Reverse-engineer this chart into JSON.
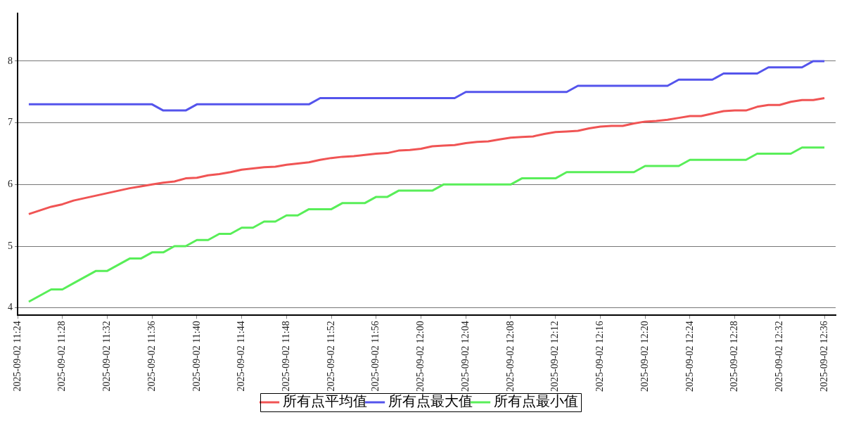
{
  "chart_data": {
    "type": "line",
    "x": [
      "2025-09-02T11:25",
      "2025-09-02T11:26",
      "2025-09-02T11:27",
      "2025-09-02T11:28",
      "2025-09-02T11:29",
      "2025-09-02T11:30",
      "2025-09-02T11:31",
      "2025-09-02T11:32",
      "2025-09-02T11:33",
      "2025-09-02T11:34",
      "2025-09-02T11:35",
      "2025-09-02T11:36",
      "2025-09-02T11:37",
      "2025-09-02T11:38",
      "2025-09-02T11:39",
      "2025-09-02T11:40",
      "2025-09-02T11:41",
      "2025-09-02T11:42",
      "2025-09-02T11:43",
      "2025-09-02T11:44",
      "2025-09-02T11:45",
      "2025-09-02T11:46",
      "2025-09-02T11:47",
      "2025-09-02T11:48",
      "2025-09-02T11:49",
      "2025-09-02T11:50",
      "2025-09-02T11:51",
      "2025-09-02T11:52",
      "2025-09-02T11:53",
      "2025-09-02T11:54",
      "2025-09-02T11:55",
      "2025-09-02T11:56",
      "2025-09-02T11:57",
      "2025-09-02T11:58",
      "2025-09-02T11:59",
      "2025-09-02T12:00",
      "2025-09-02T12:01",
      "2025-09-02T12:02",
      "2025-09-02T12:03",
      "2025-09-02T12:04",
      "2025-09-02T12:05",
      "2025-09-02T12:06",
      "2025-09-02T12:07",
      "2025-09-02T12:08",
      "2025-09-02T12:09",
      "2025-09-02T12:10",
      "2025-09-02T12:11",
      "2025-09-02T12:12",
      "2025-09-02T12:13",
      "2025-09-02T12:14",
      "2025-09-02T12:15",
      "2025-09-02T12:16",
      "2025-09-02T12:17",
      "2025-09-02T12:18",
      "2025-09-02T12:19",
      "2025-09-02T12:20",
      "2025-09-02T12:21",
      "2025-09-02T12:22",
      "2025-09-02T12:23",
      "2025-09-02T12:24",
      "2025-09-02T12:25",
      "2025-09-02T12:26",
      "2025-09-02T12:27",
      "2025-09-02T12:28",
      "2025-09-02T12:29",
      "2025-09-02T12:30",
      "2025-09-02T12:31",
      "2025-09-02T12:32",
      "2025-09-02T12:33",
      "2025-09-02T12:34",
      "2025-09-02T12:35",
      "2025-09-02T12:36"
    ],
    "series": [
      {
        "name": "所有点平均值",
        "color": "#f05454",
        "values": [
          5.52,
          5.58,
          5.64,
          5.68,
          5.74,
          5.78,
          5.82,
          5.86,
          5.9,
          5.94,
          5.97,
          6.0,
          6.03,
          6.05,
          6.1,
          6.11,
          6.15,
          6.17,
          6.2,
          6.24,
          6.26,
          6.28,
          6.29,
          6.32,
          6.34,
          6.36,
          6.4,
          6.43,
          6.45,
          6.46,
          6.48,
          6.5,
          6.51,
          6.55,
          6.56,
          6.58,
          6.62,
          6.63,
          6.64,
          6.67,
          6.69,
          6.7,
          6.73,
          6.76,
          6.77,
          6.78,
          6.82,
          6.85,
          6.86,
          6.87,
          6.91,
          6.94,
          6.95,
          6.95,
          6.99,
          7.02,
          7.03,
          7.05,
          7.08,
          7.11,
          7.11,
          7.15,
          7.19,
          7.2,
          7.2,
          7.26,
          7.29,
          7.29,
          7.34,
          7.37,
          7.37,
          7.4
        ]
      },
      {
        "name": "所有点最大值",
        "color": "#5454ec",
        "values": [
          7.3,
          7.3,
          7.3,
          7.3,
          7.3,
          7.3,
          7.3,
          7.3,
          7.3,
          7.3,
          7.3,
          7.3,
          7.2,
          7.2,
          7.2,
          7.3,
          7.3,
          7.3,
          7.3,
          7.3,
          7.3,
          7.3,
          7.3,
          7.3,
          7.3,
          7.3,
          7.4,
          7.4,
          7.4,
          7.4,
          7.4,
          7.4,
          7.4,
          7.4,
          7.4,
          7.4,
          7.4,
          7.4,
          7.4,
          7.5,
          7.5,
          7.5,
          7.5,
          7.5,
          7.5,
          7.5,
          7.5,
          7.5,
          7.5,
          7.6,
          7.6,
          7.6,
          7.6,
          7.6,
          7.6,
          7.6,
          7.6,
          7.6,
          7.7,
          7.7,
          7.7,
          7.7,
          7.8,
          7.8,
          7.8,
          7.8,
          7.9,
          7.9,
          7.9,
          7.9,
          8.0,
          8.0
        ]
      },
      {
        "name": "所有点最小值",
        "color": "#58ee58",
        "values": [
          4.1,
          4.2,
          4.3,
          4.3,
          4.4,
          4.5,
          4.6,
          4.6,
          4.7,
          4.8,
          4.8,
          4.9,
          4.9,
          5.0,
          5.0,
          5.1,
          5.1,
          5.2,
          5.2,
          5.3,
          5.3,
          5.4,
          5.4,
          5.5,
          5.5,
          5.6,
          5.6,
          5.6,
          5.7,
          5.7,
          5.7,
          5.8,
          5.8,
          5.9,
          5.9,
          5.9,
          5.9,
          6.0,
          6.0,
          6.0,
          6.0,
          6.0,
          6.0,
          6.0,
          6.1,
          6.1,
          6.1,
          6.1,
          6.2,
          6.2,
          6.2,
          6.2,
          6.2,
          6.2,
          6.2,
          6.3,
          6.3,
          6.3,
          6.3,
          6.4,
          6.4,
          6.4,
          6.4,
          6.4,
          6.4,
          6.5,
          6.5,
          6.5,
          6.5,
          6.6,
          6.6,
          6.6
        ]
      }
    ],
    "xlim": [
      "2025-09-02T11:24",
      "2025-09-02T12:37"
    ],
    "xticks": [
      {
        "value": "2025-09-02T11:24",
        "label": "2025-09-02 11:24"
      },
      {
        "value": "2025-09-02T11:28",
        "label": "2025-09-02 11:28"
      },
      {
        "value": "2025-09-02T11:32",
        "label": "2025-09-02 11:32"
      },
      {
        "value": "2025-09-02T11:36",
        "label": "2025-09-02 11:36"
      },
      {
        "value": "2025-09-02T11:40",
        "label": "2025-09-02 11:40"
      },
      {
        "value": "2025-09-02T11:44",
        "label": "2025-09-02 11:44"
      },
      {
        "value": "2025-09-02T11:48",
        "label": "2025-09-02 11:48"
      },
      {
        "value": "2025-09-02T11:52",
        "label": "2025-09-02 11:52"
      },
      {
        "value": "2025-09-02T11:56",
        "label": "2025-09-02 11:56"
      },
      {
        "value": "2025-09-02T12:00",
        "label": "2025-09-02 12:00"
      },
      {
        "value": "2025-09-02T12:04",
        "label": "2025-09-02 12:04"
      },
      {
        "value": "2025-09-02T12:08",
        "label": "2025-09-02 12:08"
      },
      {
        "value": "2025-09-02T12:12",
        "label": "2025-09-02 12:12"
      },
      {
        "value": "2025-09-02T12:16",
        "label": "2025-09-02 12:16"
      },
      {
        "value": "2025-09-02T12:20",
        "label": "2025-09-02 12:20"
      },
      {
        "value": "2025-09-02T12:24",
        "label": "2025-09-02 12:24"
      },
      {
        "value": "2025-09-02T12:28",
        "label": "2025-09-02 12:28"
      },
      {
        "value": "2025-09-02T12:32",
        "label": "2025-09-02 12:32"
      },
      {
        "value": "2025-09-02T12:36",
        "label": "2025-09-02 12:36"
      }
    ],
    "ylim": [
      3.88,
      8.77
    ],
    "yticks": [
      4,
      5,
      6,
      7,
      8
    ],
    "grid": "y",
    "legend": "bottom",
    "marker": "none",
    "line_style": "solid"
  }
}
